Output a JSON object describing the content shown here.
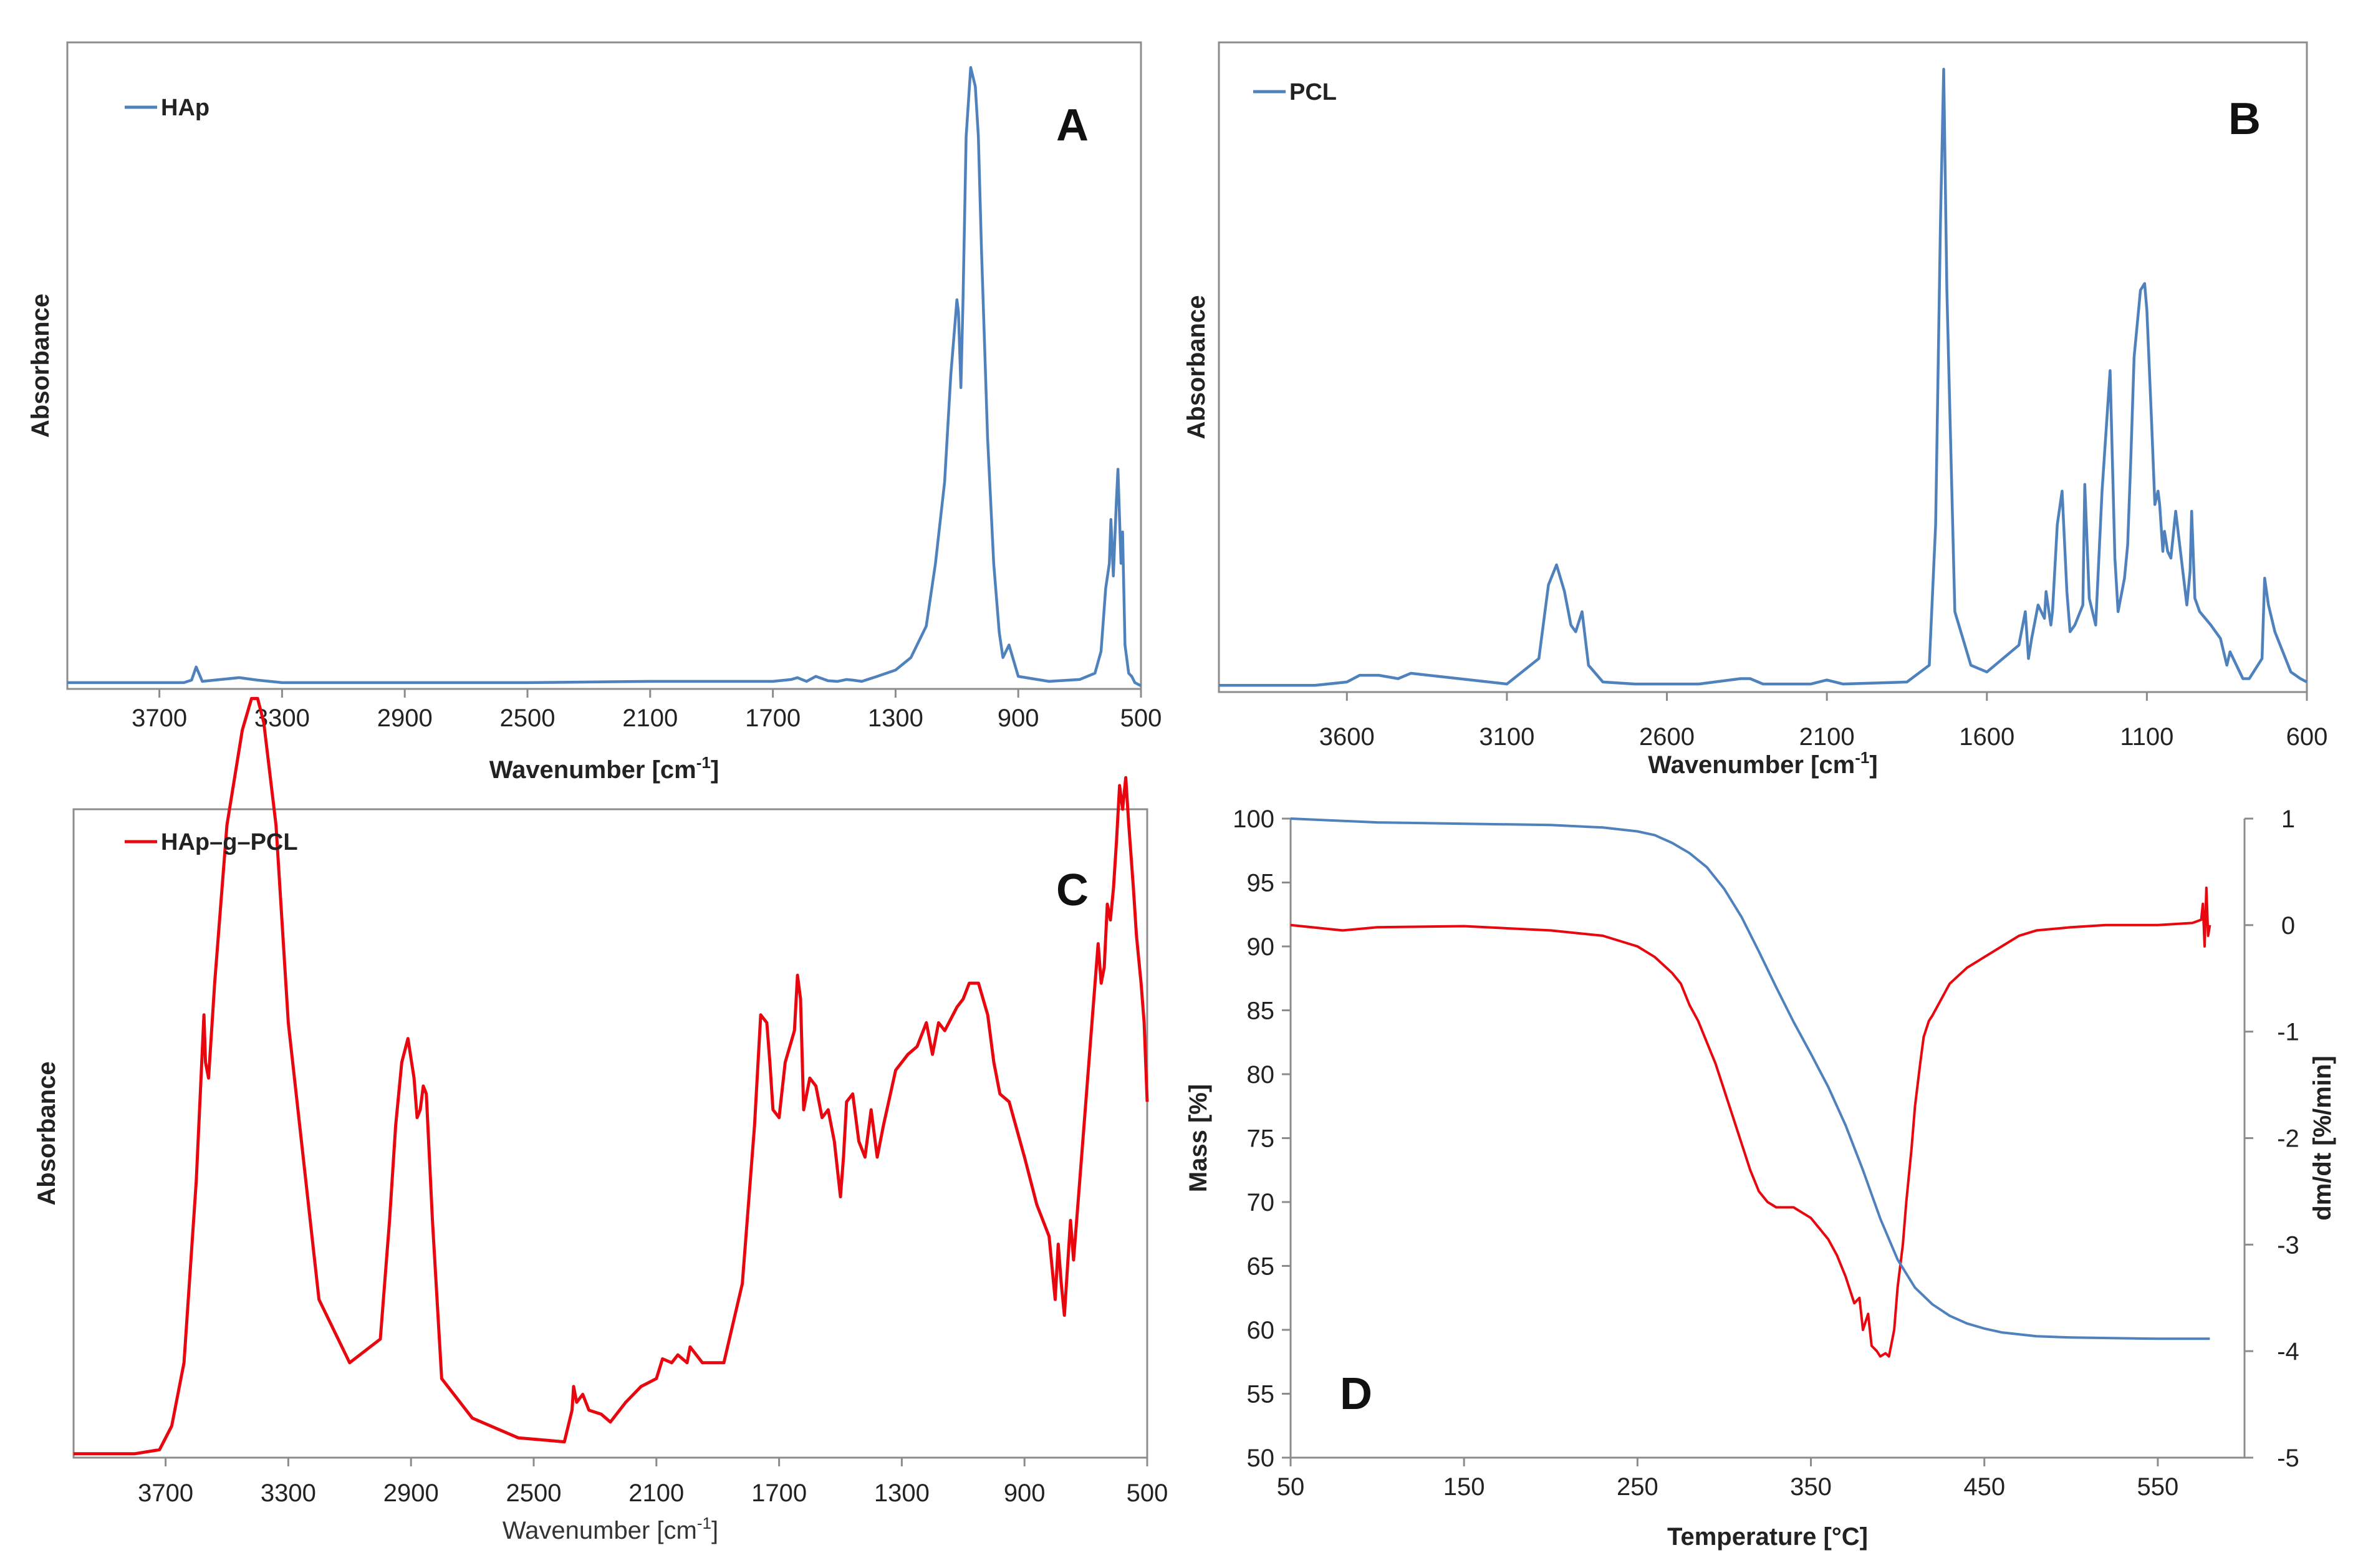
{
  "chart_data": [
    {
      "id": "A",
      "type": "line",
      "panel_label": "A",
      "legend": [
        "HAp"
      ],
      "xlabel": "Wavenumber [cm",
      "xlabel_sup": "-1",
      "xlabel_end": "]",
      "ylabel": "Absorbance",
      "xlim": [
        4000,
        500
      ],
      "x_reversed": true,
      "xticks": [
        3700,
        3300,
        2900,
        2500,
        2100,
        1700,
        1300,
        900,
        500
      ],
      "colors": {
        "series": "#4f81bd"
      },
      "series": [
        {
          "name": "HAp",
          "x": [
            4000,
            3620,
            3595,
            3580,
            3560,
            3500,
            3440,
            3380,
            3300,
            2900,
            2500,
            2100,
            1700,
            1640,
            1620,
            1590,
            1560,
            1520,
            1490,
            1460,
            1440,
            1410,
            1360,
            1300,
            1250,
            1200,
            1170,
            1140,
            1120,
            1100,
            1095,
            1087,
            1080,
            1070,
            1055,
            1040,
            1030,
            1020,
            1000,
            980,
            962,
            950,
            930,
            900,
            800,
            700,
            650,
            630,
            615,
            603,
            598,
            590,
            580,
            575,
            565,
            560,
            552,
            540,
            530,
            520,
            500
          ],
          "y": [
            0.01,
            0.01,
            0.014,
            0.035,
            0.012,
            0.015,
            0.018,
            0.014,
            0.01,
            0.01,
            0.01,
            0.012,
            0.012,
            0.015,
            0.018,
            0.012,
            0.02,
            0.013,
            0.012,
            0.015,
            0.014,
            0.012,
            0.02,
            0.03,
            0.05,
            0.1,
            0.2,
            0.33,
            0.5,
            0.62,
            0.6,
            0.48,
            0.62,
            0.88,
            0.99,
            0.96,
            0.88,
            0.7,
            0.4,
            0.2,
            0.09,
            0.05,
            0.07,
            0.02,
            0.012,
            0.015,
            0.025,
            0.06,
            0.16,
            0.2,
            0.27,
            0.18,
            0.3,
            0.35,
            0.2,
            0.25,
            0.07,
            0.025,
            0.02,
            0.01,
            0.005
          ]
        }
      ]
    },
    {
      "id": "B",
      "type": "line",
      "panel_label": "B",
      "legend": [
        "PCL"
      ],
      "xlabel": "Wavenumber [cm",
      "xlabel_sup": "-1",
      "xlabel_end": "]",
      "ylabel": "Absorbance",
      "xlim": [
        4000,
        600
      ],
      "x_reversed": true,
      "xticks": [
        3600,
        3100,
        2600,
        2100,
        1600,
        1100,
        600
      ],
      "colors": {
        "series": "#4f81bd"
      },
      "series": [
        {
          "name": "PCL",
          "x": [
            4000,
            3700,
            3600,
            3560,
            3500,
            3440,
            3400,
            3100,
            3000,
            2970,
            2945,
            2920,
            2900,
            2885,
            2865,
            2845,
            2800,
            2700,
            2500,
            2370,
            2340,
            2300,
            2150,
            2100,
            2050,
            1850,
            1780,
            1760,
            1745,
            1735,
            1725,
            1700,
            1650,
            1600,
            1500,
            1480,
            1470,
            1460,
            1440,
            1420,
            1415,
            1400,
            1395,
            1380,
            1365,
            1350,
            1340,
            1325,
            1300,
            1294,
            1280,
            1260,
            1240,
            1215,
            1200,
            1190,
            1170,
            1160,
            1150,
            1140,
            1120,
            1107,
            1100,
            1085,
            1075,
            1065,
            1060,
            1050,
            1045,
            1035,
            1025,
            1010,
            975,
            965,
            960,
            950,
            935,
            900,
            870,
            850,
            840,
            800,
            780,
            740,
            732,
            720,
            700,
            650,
            620,
            600
          ],
          "y": [
            0.01,
            0.01,
            0.015,
            0.025,
            0.025,
            0.02,
            0.028,
            0.012,
            0.05,
            0.16,
            0.19,
            0.15,
            0.1,
            0.09,
            0.12,
            0.04,
            0.015,
            0.012,
            0.012,
            0.02,
            0.02,
            0.012,
            0.012,
            0.018,
            0.012,
            0.015,
            0.04,
            0.25,
            0.7,
            0.93,
            0.6,
            0.12,
            0.04,
            0.03,
            0.07,
            0.12,
            0.05,
            0.08,
            0.13,
            0.11,
            0.15,
            0.1,
            0.12,
            0.25,
            0.3,
            0.15,
            0.09,
            0.1,
            0.13,
            0.31,
            0.14,
            0.1,
            0.3,
            0.48,
            0.2,
            0.12,
            0.17,
            0.22,
            0.35,
            0.5,
            0.6,
            0.61,
            0.57,
            0.4,
            0.28,
            0.3,
            0.28,
            0.21,
            0.24,
            0.21,
            0.2,
            0.27,
            0.13,
            0.18,
            0.27,
            0.14,
            0.12,
            0.1,
            0.08,
            0.04,
            0.06,
            0.02,
            0.02,
            0.05,
            0.17,
            0.13,
            0.09,
            0.03,
            0.02,
            0.015
          ]
        }
      ]
    },
    {
      "id": "C",
      "type": "line",
      "panel_label": "C",
      "legend": [
        "HAp–g–PCL"
      ],
      "xlabel": "Wavenumber [cm",
      "xlabel_sup": "-1",
      "xlabel_end": "]",
      "ylabel": "Absorbance",
      "xlim": [
        4000,
        500
      ],
      "x_reversed": true,
      "xticks": [
        3700,
        3300,
        2900,
        2500,
        2100,
        1700,
        1300,
        900,
        500
      ],
      "colors": {
        "series": "#e8070f"
      },
      "series": [
        {
          "name": "HAp–g–PCL",
          "x": [
            4000,
            3800,
            3720,
            3680,
            3640,
            3600,
            3575,
            3570,
            3560,
            3540,
            3500,
            3450,
            3420,
            3400,
            3380,
            3340,
            3300,
            3200,
            3100,
            3000,
            2970,
            2950,
            2930,
            2910,
            2890,
            2880,
            2870,
            2860,
            2850,
            2830,
            2800,
            2700,
            2550,
            2400,
            2375,
            2370,
            2360,
            2340,
            2320,
            2280,
            2250,
            2200,
            2150,
            2100,
            2080,
            2050,
            2030,
            2000,
            1990,
            1950,
            1880,
            1820,
            1780,
            1760,
            1740,
            1730,
            1720,
            1700,
            1680,
            1650,
            1640,
            1630,
            1620,
            1600,
            1580,
            1560,
            1540,
            1520,
            1500,
            1490,
            1480,
            1460,
            1440,
            1420,
            1400,
            1380,
            1360,
            1320,
            1280,
            1250,
            1220,
            1200,
            1180,
            1160,
            1120,
            1100,
            1080,
            1050,
            1020,
            1000,
            980,
            950,
            900,
            860,
            820,
            800,
            790,
            780,
            770,
            760,
            750,
            740,
            720,
            700,
            680,
            660,
            650,
            640,
            630,
            620,
            610,
            600,
            590,
            580,
            570,
            560,
            545,
            535,
            520,
            510,
            500
          ],
          "y": [
            0.005,
            0.005,
            0.01,
            0.04,
            0.12,
            0.35,
            0.56,
            0.5,
            0.48,
            0.6,
            0.8,
            0.92,
            0.96,
            0.96,
            0.93,
            0.8,
            0.55,
            0.2,
            0.12,
            0.15,
            0.3,
            0.42,
            0.5,
            0.53,
            0.48,
            0.43,
            0.44,
            0.47,
            0.46,
            0.3,
            0.1,
            0.05,
            0.025,
            0.02,
            0.06,
            0.09,
            0.07,
            0.08,
            0.06,
            0.055,
            0.045,
            0.07,
            0.09,
            0.1,
            0.125,
            0.12,
            0.13,
            0.12,
            0.14,
            0.12,
            0.12,
            0.22,
            0.42,
            0.56,
            0.55,
            0.5,
            0.44,
            0.43,
            0.5,
            0.54,
            0.61,
            0.58,
            0.44,
            0.48,
            0.47,
            0.43,
            0.44,
            0.4,
            0.33,
            0.38,
            0.45,
            0.46,
            0.4,
            0.38,
            0.44,
            0.38,
            0.42,
            0.49,
            0.51,
            0.52,
            0.55,
            0.51,
            0.55,
            0.54,
            0.57,
            0.58,
            0.6,
            0.6,
            0.56,
            0.5,
            0.46,
            0.45,
            0.38,
            0.32,
            0.28,
            0.2,
            0.27,
            0.22,
            0.18,
            0.24,
            0.3,
            0.25,
            0.35,
            0.45,
            0.55,
            0.65,
            0.6,
            0.62,
            0.7,
            0.68,
            0.72,
            0.78,
            0.85,
            0.82,
            0.86,
            0.8,
            0.72,
            0.66,
            0.6,
            0.55,
            0.45
          ]
        }
      ]
    },
    {
      "id": "D",
      "type": "line",
      "panel_label": "D",
      "xlabel": "Temperature [°C]",
      "ylabel": "Mass [%]",
      "y2label": "dm/dt [%/min]",
      "xlim": [
        50,
        600
      ],
      "xticks": [
        50,
        150,
        250,
        350,
        450,
        550
      ],
      "ylim": [
        50,
        100
      ],
      "yticks": [
        50,
        55,
        60,
        65,
        70,
        75,
        80,
        85,
        90,
        95,
        100
      ],
      "y2lim": [
        -5,
        1
      ],
      "y2ticks": [
        -5,
        -4,
        -3,
        -2,
        -1,
        0,
        1
      ],
      "colors": {
        "mass": "#4f81bd",
        "dtg": "#e8070f"
      },
      "series": [
        {
          "name": "Mass",
          "axis": "left",
          "x": [
            50,
            100,
            150,
            200,
            230,
            250,
            260,
            270,
            280,
            290,
            300,
            310,
            320,
            330,
            340,
            350,
            360,
            370,
            380,
            390,
            400,
            410,
            420,
            430,
            440,
            450,
            460,
            480,
            500,
            550,
            580
          ],
          "y": [
            100,
            99.7,
            99.6,
            99.5,
            99.3,
            99.0,
            98.7,
            98.1,
            97.3,
            96.2,
            94.5,
            92.3,
            89.6,
            86.8,
            84.1,
            81.6,
            79.0,
            76.0,
            72.5,
            68.7,
            65.5,
            63.3,
            62.0,
            61.1,
            60.5,
            60.1,
            59.8,
            59.5,
            59.4,
            59.3,
            59.3
          ]
        },
        {
          "name": "dm/dt",
          "axis": "right",
          "x": [
            50,
            80,
            100,
            150,
            200,
            230,
            250,
            260,
            270,
            275,
            280,
            285,
            290,
            295,
            300,
            305,
            310,
            315,
            320,
            325,
            330,
            340,
            345,
            350,
            355,
            360,
            365,
            370,
            375,
            378,
            380,
            383,
            385,
            388,
            390,
            393,
            395,
            398,
            400,
            403,
            405,
            408,
            410,
            413,
            415,
            418,
            420,
            425,
            430,
            440,
            450,
            460,
            470,
            480,
            500,
            520,
            550,
            570,
            575,
            576,
            577,
            578,
            579,
            580
          ],
          "y": [
            0,
            -0.05,
            -0.02,
            -0.01,
            -0.05,
            -0.1,
            -0.2,
            -0.3,
            -0.45,
            -0.55,
            -0.75,
            -0.9,
            -1.1,
            -1.3,
            -1.55,
            -1.8,
            -2.05,
            -2.3,
            -2.5,
            -2.6,
            -2.65,
            -2.65,
            -2.7,
            -2.75,
            -2.85,
            -2.95,
            -3.1,
            -3.3,
            -3.55,
            -3.5,
            -3.8,
            -3.65,
            -3.95,
            -4.0,
            -4.05,
            -4.02,
            -4.05,
            -3.8,
            -3.4,
            -3.0,
            -2.6,
            -2.1,
            -1.7,
            -1.3,
            -1.05,
            -0.9,
            -0.85,
            -0.7,
            -0.55,
            -0.4,
            -0.3,
            -0.2,
            -0.1,
            -0.05,
            -0.02,
            0.0,
            0.0,
            0.02,
            0.05,
            0.2,
            -0.2,
            0.35,
            -0.1,
            0.0
          ]
        }
      ]
    }
  ]
}
